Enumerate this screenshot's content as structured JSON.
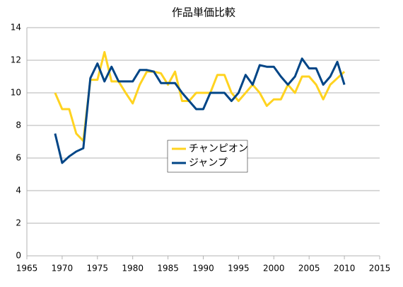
{
  "chart_data": {
    "type": "line",
    "title": "作品単価比較",
    "x": [
      1969,
      1970,
      1971,
      1972,
      1973,
      1974,
      1975,
      1976,
      1977,
      1978,
      1979,
      1980,
      1981,
      1982,
      1983,
      1984,
      1985,
      1986,
      1987,
      1988,
      1989,
      1990,
      1991,
      1992,
      1993,
      1994,
      1995,
      1996,
      1997,
      1998,
      1999,
      2000,
      2001,
      2002,
      2003,
      2004,
      2005,
      2006,
      2007,
      2008,
      2009,
      2010
    ],
    "series": [
      {
        "name": "チャンピオン",
        "color": "#ffd320",
        "values": [
          10.0,
          9.0,
          9.0,
          7.5,
          7.05,
          10.8,
          10.8,
          12.5,
          10.7,
          10.7,
          10.0,
          9.35,
          10.5,
          11.3,
          11.3,
          11.2,
          10.5,
          11.3,
          9.5,
          9.5,
          10.0,
          10.0,
          10.0,
          11.1,
          11.1,
          10.0,
          9.5,
          10.0,
          10.5,
          10.0,
          9.2,
          9.6,
          9.6,
          10.5,
          10.0,
          11.0,
          11.0,
          10.5,
          9.6,
          10.5,
          10.9,
          11.3
        ]
      },
      {
        "name": "ジャンプ",
        "color": "#004586",
        "values": [
          7.5,
          5.7,
          6.1,
          6.4,
          6.6,
          10.9,
          11.8,
          10.7,
          11.6,
          10.7,
          10.7,
          10.7,
          11.4,
          11.4,
          11.3,
          10.6,
          10.6,
          10.6,
          10.0,
          9.5,
          9.0,
          9.0,
          10.0,
          10.0,
          10.0,
          9.5,
          10.0,
          11.1,
          10.5,
          11.7,
          11.6,
          11.6,
          11.0,
          10.5,
          11.0,
          12.1,
          11.5,
          11.5,
          10.5,
          11.0,
          11.9,
          10.5
        ]
      }
    ],
    "xlim": [
      1965,
      2015
    ],
    "xticks": [
      1965,
      1970,
      1975,
      1980,
      1985,
      1990,
      1995,
      2000,
      2005,
      2010,
      2015
    ],
    "ylim": [
      0,
      14
    ],
    "yticks": [
      0,
      2,
      4,
      6,
      8,
      10,
      12,
      14
    ],
    "grid": true
  }
}
